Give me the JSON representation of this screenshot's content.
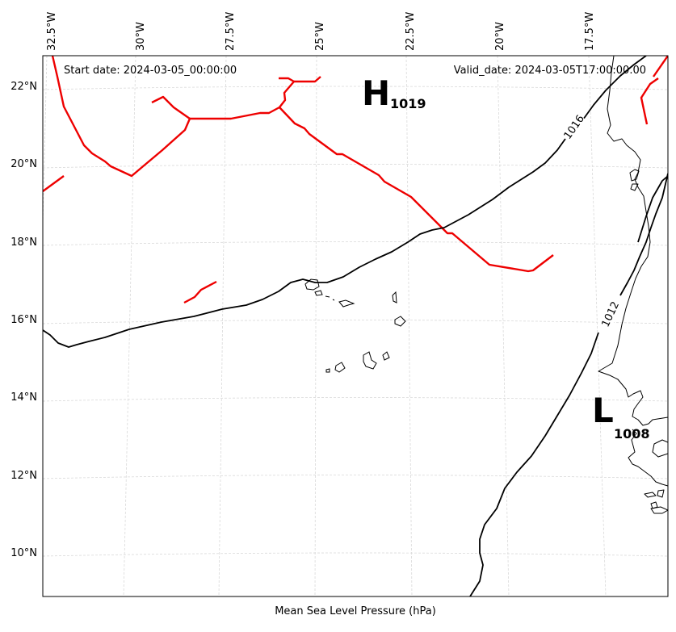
{
  "map": {
    "start_date": "Start date: 2024-03-05_00:00:00",
    "valid_date": "Valid_date: 2024-03-05T17:00:00.00",
    "xlabel": "Mean Sea Level Pressure (hPa)",
    "lon_ticks": [
      "32.5°W",
      "30°W",
      "27.5°W",
      "25°W",
      "22.5°W",
      "20°W",
      "17.5°W"
    ],
    "lat_ticks": [
      "22°N",
      "20°N",
      "18°N",
      "16°N",
      "14°N",
      "12°N",
      "10°N"
    ],
    "contour_labels": [
      "1016",
      "1012"
    ],
    "high": {
      "symbol": "H",
      "value": "1019"
    },
    "low": {
      "symbol": "L",
      "value": "1008"
    },
    "colors": {
      "front": "#ee0000",
      "contour": "#000000",
      "grid": "#d9d9d9",
      "coast": "#000000"
    }
  }
}
